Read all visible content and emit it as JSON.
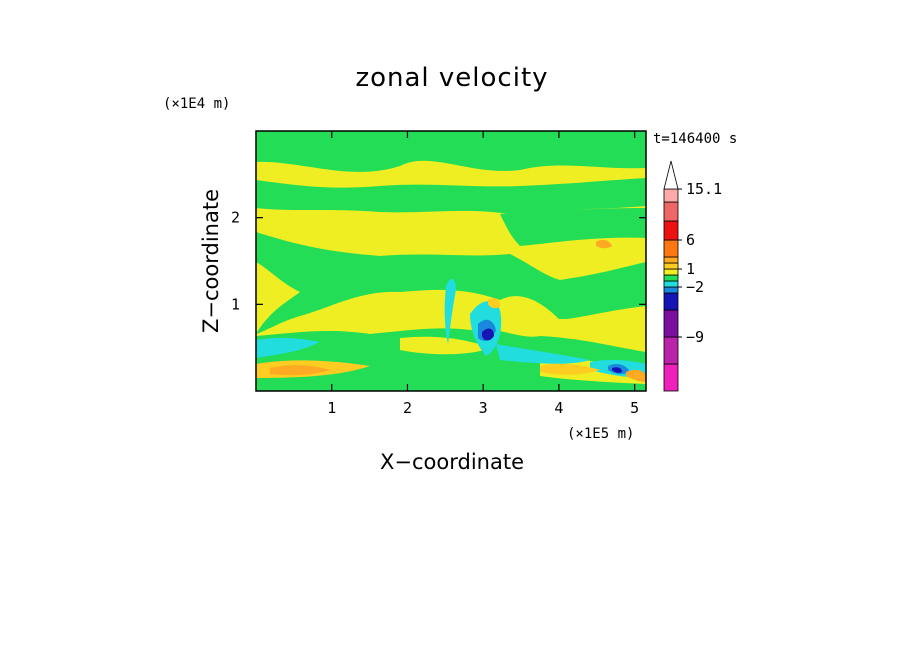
{
  "chart_data": {
    "type": "heatmap",
    "title": "zonal velocity",
    "xlabel": "X−coordinate",
    "ylabel": "Z−coordinate",
    "x_scale_label": "(×1E5 m)",
    "y_scale_label": "(×1E4 m)",
    "time_label": "t=146400 s",
    "xlim": [
      0,
      5.15
    ],
    "ylim": [
      0,
      3.0
    ],
    "x_ticks": [
      1,
      2,
      3,
      4,
      5
    ],
    "y_ticks": [
      1,
      2
    ],
    "colorbar": {
      "levels": [
        {
          "lo": null,
          "hi": -12,
          "color": "#ee22bb"
        },
        {
          "lo": -12,
          "hi": -9,
          "color": "#bb22aa"
        },
        {
          "lo": -9,
          "hi": -6,
          "color": "#7a0fa0"
        },
        {
          "lo": -6,
          "hi": -3,
          "color": "#1515b5"
        },
        {
          "lo": -3,
          "hi": -2,
          "color": "#1a88dd"
        },
        {
          "lo": -2,
          "hi": -1,
          "color": "#22dddd"
        },
        {
          "lo": -1,
          "hi": 0,
          "color": "#22dd55"
        },
        {
          "lo": 0,
          "hi": 1,
          "color": "#eeee22"
        },
        {
          "lo": 1,
          "hi": 2,
          "color": "#ffcc22"
        },
        {
          "lo": 2,
          "hi": 3,
          "color": "#ffaa22"
        },
        {
          "lo": 3,
          "hi": 6,
          "color": "#ff7711"
        },
        {
          "lo": 6,
          "hi": 9,
          "color": "#ee1111"
        },
        {
          "lo": 9,
          "hi": 12,
          "color": "#ee6666"
        },
        {
          "lo": 12,
          "hi": 15.1,
          "color": "#ffaaaa"
        },
        {
          "lo": 15.1,
          "hi": null,
          "color": "#ffffff"
        }
      ],
      "labels": [
        "15.1",
        "6",
        "1",
        "−2",
        "−9"
      ]
    }
  }
}
